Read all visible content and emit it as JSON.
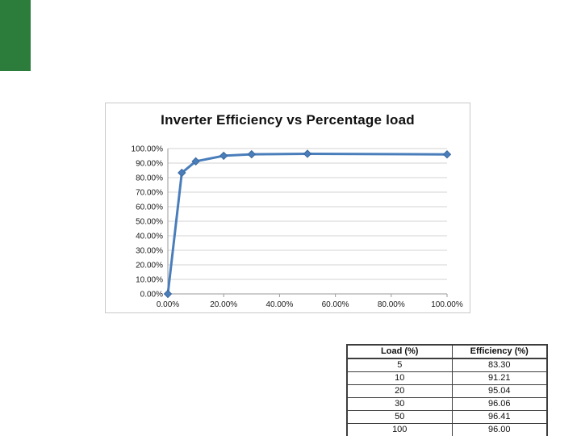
{
  "accent": {
    "bar_color": "#2c7c3c"
  },
  "chart_data": {
    "type": "line",
    "title": "Inverter Efficiency vs Percentage load",
    "series_name": "Inverter Efficiency",
    "x": [
      0,
      5,
      10,
      20,
      30,
      50,
      100
    ],
    "y": [
      0,
      83.3,
      91.21,
      95.04,
      96.06,
      96.41,
      96.0
    ],
    "xlim": [
      0,
      100
    ],
    "ylim": [
      0,
      100
    ],
    "x_ticks": [
      0,
      20,
      40,
      60,
      80,
      100
    ],
    "x_tick_labels": [
      "0.00%",
      "20.00%",
      "40.00%",
      "60.00%",
      "80.00%",
      "100.00%"
    ],
    "y_ticks": [
      0,
      10,
      20,
      30,
      40,
      50,
      60,
      70,
      80,
      90,
      100
    ],
    "y_tick_labels": [
      "0.00%",
      "10.00%",
      "20.00%",
      "30.00%",
      "40.00%",
      "50.00%",
      "60.00%",
      "70.00%",
      "80.00%",
      "90.00%",
      "100.00%"
    ],
    "grid": true,
    "legend_position": "none",
    "line_color": "#4a7ebb",
    "marker": "diamond",
    "marker_edge_color": "#3a679c",
    "gridline_color": "#d3d3d3",
    "axis_color": "#9a9a9a"
  },
  "table": {
    "headers": [
      "Load (%)",
      "Efficiency (%)"
    ],
    "rows": [
      [
        "5",
        "83.30"
      ],
      [
        "10",
        "91.21"
      ],
      [
        "20",
        "95.04"
      ],
      [
        "30",
        "96.06"
      ],
      [
        "50",
        "96.41"
      ],
      [
        "100",
        "96.00"
      ]
    ]
  }
}
